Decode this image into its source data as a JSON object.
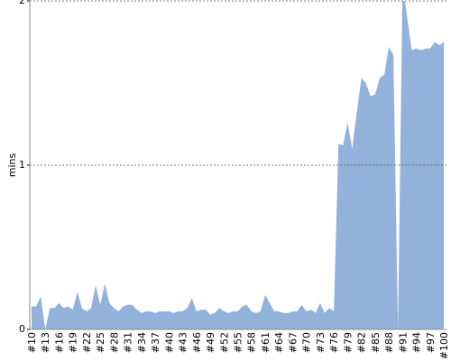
{
  "chart_data": {
    "type": "area",
    "y_label": "mins",
    "categories": [
      "#10",
      null,
      null,
      "#13",
      null,
      null,
      "#16",
      null,
      null,
      "#19",
      null,
      null,
      "#22",
      null,
      null,
      "#25",
      null,
      null,
      "#28",
      null,
      null,
      "#31",
      null,
      null,
      "#34",
      null,
      null,
      "#37",
      null,
      null,
      "#40",
      null,
      null,
      "#43",
      null,
      null,
      "#46",
      null,
      null,
      "#49",
      null,
      null,
      "#52",
      null,
      null,
      "#55",
      null,
      null,
      "#58",
      null,
      null,
      "#61",
      null,
      null,
      "#64",
      null,
      null,
      "#67",
      null,
      null,
      "#70",
      null,
      null,
      "#73",
      null,
      null,
      "#76",
      null,
      null,
      "#79",
      null,
      null,
      "#82",
      null,
      null,
      "#85",
      null,
      null,
      "#88",
      null,
      null,
      "#91",
      null,
      null,
      "#94",
      null,
      null,
      "#97",
      null,
      null,
      "#100"
    ],
    "values": [
      0.14,
      0.14,
      0.2,
      0,
      0.13,
      0.13,
      0.16,
      0.13,
      0.14,
      0.12,
      0.23,
      0.13,
      0.11,
      0.13,
      0.27,
      0.15,
      0.28,
      0.16,
      0.13,
      0.11,
      0.14,
      0.15,
      0.15,
      0.12,
      0.1,
      0.11,
      0.11,
      0.1,
      0.11,
      0.11,
      0.11,
      0.1,
      0.11,
      0.11,
      0.13,
      0.19,
      0.11,
      0.12,
      0.12,
      0.09,
      0.1,
      0.13,
      0.11,
      0.1,
      0.11,
      0.11,
      0.14,
      0.15,
      0.11,
      0.1,
      0.11,
      0.21,
      0.16,
      0.11,
      0.11,
      0.1,
      0.1,
      0.11,
      0.11,
      0.15,
      0.11,
      0.12,
      0.1,
      0.16,
      0.1,
      0.13,
      0.11,
      1.13,
      1.12,
      1.26,
      1.1,
      1.32,
      1.53,
      1.5,
      1.42,
      1.43,
      1.53,
      1.55,
      1.72,
      1.67,
      0,
      2.1,
      1.9,
      1.7,
      1.71,
      1.7,
      1.71,
      1.71,
      1.75,
      1.73,
      1.75
    ],
    "color": "#92b2dc",
    "ylim": [
      0,
      2
    ],
    "yticks": [
      0,
      1,
      2
    ],
    "grid": true
  }
}
